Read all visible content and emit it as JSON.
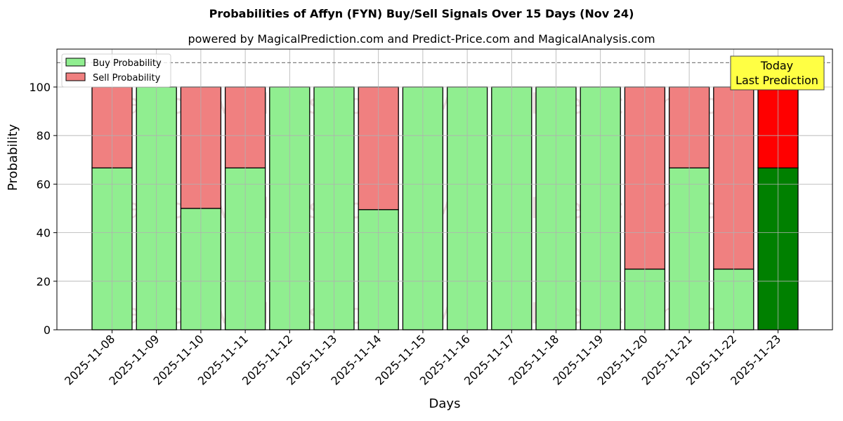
{
  "chart_data": {
    "type": "bar",
    "stacked": true,
    "title": "Probabilities of Affyn (FYN) Buy/Sell Signals Over 15 Days (Nov 24)",
    "subtitle": "powered by MagicalPrediction.com and Predict-Price.com and MagicalAnalysis.com",
    "xlabel": "Days",
    "ylabel": "Probability",
    "ylim": [
      0,
      115
    ],
    "yticks": [
      0,
      20,
      40,
      60,
      80,
      100
    ],
    "grid": true,
    "legend_position": "upper left",
    "reference_line": {
      "y": 110,
      "style": "dashed",
      "color": "#808080"
    },
    "categories": [
      "2025-11-08",
      "2025-11-09",
      "2025-11-10",
      "2025-11-11",
      "2025-11-12",
      "2025-11-13",
      "2025-11-14",
      "2025-11-15",
      "2025-11-16",
      "2025-11-17",
      "2025-11-18",
      "2025-11-19",
      "2025-11-20",
      "2025-11-21",
      "2025-11-22",
      "2025-11-23"
    ],
    "series": [
      {
        "name": "Buy Probability",
        "color": "#90EE90",
        "values": [
          66.67,
          100,
          50,
          66.67,
          100,
          100,
          49.5,
          100,
          100,
          100,
          100,
          100,
          25,
          66.67,
          25,
          66.67
        ]
      },
      {
        "name": "Sell Probability",
        "color": "#F08080",
        "values": [
          33.33,
          0,
          50,
          33.33,
          0,
          0,
          50.5,
          0,
          0,
          0,
          0,
          0,
          75,
          33.33,
          75,
          33.33
        ]
      }
    ],
    "highlight": {
      "index": 15,
      "buy_color": "#008000",
      "sell_color": "#FF0000"
    },
    "annotation": {
      "text_line1": "Today",
      "text_line2": "Last Prediction",
      "bg": "#FFFF44"
    },
    "watermarks": [
      "MagicalAnalysis.com",
      "MagicalPrediction.com"
    ]
  }
}
